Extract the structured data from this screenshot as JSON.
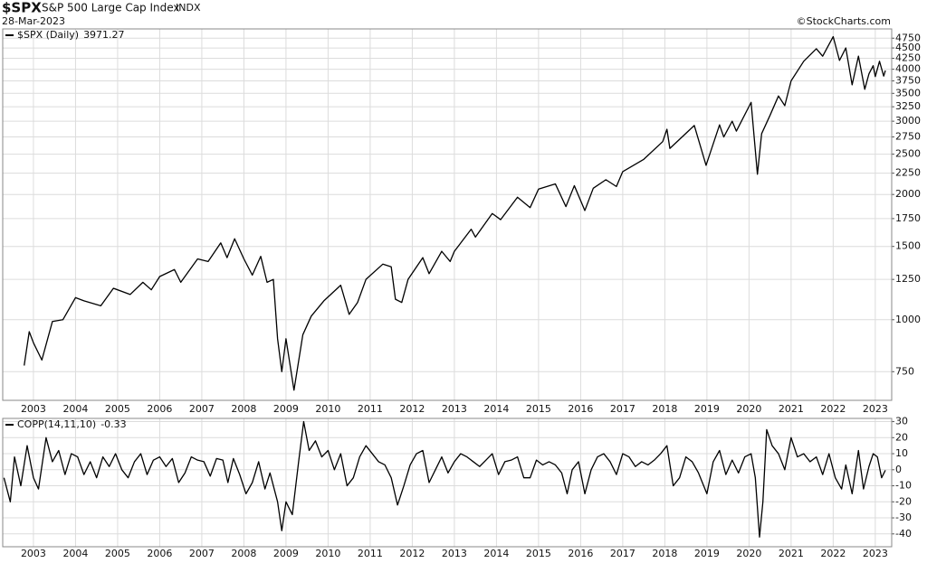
{
  "chart_data": [
    {
      "type": "line",
      "title": "$SPX",
      "subtitle": "S&P 500 Large Cap Index",
      "exchange": "INDX",
      "date": "28-Mar-2023",
      "source": "©StockCharts.com",
      "log_scale": true,
      "grid": true,
      "x": [
        2002.78,
        2002.9,
        2003.0,
        2003.2,
        2003.45,
        2003.7,
        2004.0,
        2004.2,
        2004.6,
        2004.9,
        2005.3,
        2005.6,
        2005.8,
        2006.0,
        2006.35,
        2006.5,
        2006.9,
        2007.15,
        2007.45,
        2007.6,
        2007.78,
        2008.0,
        2008.2,
        2008.4,
        2008.55,
        2008.7,
        2008.8,
        2008.9,
        2009.0,
        2009.19,
        2009.4,
        2009.6,
        2009.9,
        2010.3,
        2010.5,
        2010.7,
        2010.9,
        2011.3,
        2011.5,
        2011.6,
        2011.75,
        2011.9,
        2012.25,
        2012.4,
        2012.7,
        2012.9,
        2013.0,
        2013.4,
        2013.5,
        2013.9,
        2014.1,
        2014.5,
        2014.8,
        2015.0,
        2015.4,
        2015.65,
        2015.85,
        2016.1,
        2016.3,
        2016.6,
        2016.85,
        2017.0,
        2017.5,
        2017.95,
        2018.05,
        2018.12,
        2018.7,
        2018.98,
        2019.3,
        2019.4,
        2019.6,
        2019.7,
        2020.05,
        2020.2,
        2020.3,
        2020.5,
        2020.7,
        2020.85,
        2021.0,
        2021.3,
        2021.6,
        2021.75,
        2022.0,
        2022.15,
        2022.3,
        2022.45,
        2022.6,
        2022.75,
        2022.85,
        2022.95,
        2023.0,
        2023.1,
        2023.2,
        2023.24
      ],
      "series": [
        {
          "name": "$SPX (Daily)",
          "color": "#000000",
          "values": [
            776,
            936,
            880,
            800,
            990,
            1000,
            1130,
            1110,
            1080,
            1190,
            1150,
            1230,
            1180,
            1270,
            1320,
            1230,
            1400,
            1380,
            1530,
            1410,
            1565,
            1400,
            1280,
            1420,
            1230,
            1250,
            900,
            750,
            900,
            677,
            920,
            1020,
            1110,
            1210,
            1030,
            1100,
            1250,
            1360,
            1340,
            1120,
            1100,
            1250,
            1410,
            1290,
            1460,
            1380,
            1460,
            1650,
            1580,
            1800,
            1740,
            1970,
            1860,
            2060,
            2120,
            1870,
            2100,
            1830,
            2070,
            2170,
            2090,
            2270,
            2430,
            2680,
            2870,
            2580,
            2930,
            2350,
            2940,
            2750,
            3000,
            2840,
            3330,
            2237,
            2800,
            3100,
            3450,
            3270,
            3750,
            4180,
            4480,
            4300,
            4790,
            4200,
            4500,
            3670,
            4300,
            3580,
            3900,
            4080,
            3840,
            4180,
            3850,
            3971.27
          ]
        }
      ],
      "xlim": [
        2002.27,
        2023.39
      ],
      "xticks": [
        2003,
        2004,
        2005,
        2006,
        2007,
        2008,
        2009,
        2010,
        2011,
        2012,
        2013,
        2014,
        2015,
        2016,
        2017,
        2018,
        2019,
        2020,
        2021,
        2022,
        2023
      ],
      "ylim": [
        640,
        5000
      ],
      "yticks": [
        750,
        1000,
        1250,
        1500,
        1750,
        2000,
        2250,
        2500,
        2750,
        3000,
        3250,
        3500,
        3750,
        4000,
        4250,
        4500,
        4750
      ]
    },
    {
      "type": "line",
      "grid": true,
      "x": [
        2002.3,
        2002.45,
        2002.55,
        2002.7,
        2002.85,
        2003.0,
        2003.12,
        2003.3,
        2003.45,
        2003.6,
        2003.75,
        2003.9,
        2004.05,
        2004.2,
        2004.35,
        2004.5,
        2004.65,
        2004.8,
        2004.95,
        2005.1,
        2005.25,
        2005.4,
        2005.55,
        2005.7,
        2005.85,
        2006.0,
        2006.15,
        2006.3,
        2006.45,
        2006.6,
        2006.75,
        2006.9,
        2007.05,
        2007.2,
        2007.35,
        2007.5,
        2007.62,
        2007.75,
        2007.9,
        2008.05,
        2008.2,
        2008.35,
        2008.5,
        2008.62,
        2008.8,
        2008.9,
        2009.0,
        2009.15,
        2009.3,
        2009.42,
        2009.55,
        2009.7,
        2009.85,
        2010.0,
        2010.15,
        2010.3,
        2010.45,
        2010.6,
        2010.75,
        2010.9,
        2011.05,
        2011.2,
        2011.35,
        2011.5,
        2011.65,
        2011.8,
        2011.95,
        2012.1,
        2012.25,
        2012.4,
        2012.55,
        2012.7,
        2012.85,
        2013.0,
        2013.15,
        2013.3,
        2013.45,
        2013.6,
        2013.75,
        2013.9,
        2014.05,
        2014.2,
        2014.35,
        2014.5,
        2014.65,
        2014.8,
        2014.95,
        2015.1,
        2015.25,
        2015.4,
        2015.55,
        2015.68,
        2015.8,
        2015.95,
        2016.1,
        2016.25,
        2016.4,
        2016.55,
        2016.7,
        2016.85,
        2017.0,
        2017.15,
        2017.3,
        2017.45,
        2017.6,
        2017.75,
        2017.9,
        2018.05,
        2018.2,
        2018.35,
        2018.5,
        2018.65,
        2018.8,
        2019.0,
        2019.15,
        2019.3,
        2019.45,
        2019.6,
        2019.75,
        2019.9,
        2020.05,
        2020.15,
        2020.25,
        2020.33,
        2020.42,
        2020.55,
        2020.7,
        2020.85,
        2021.0,
        2021.15,
        2021.3,
        2021.45,
        2021.6,
        2021.75,
        2021.9,
        2022.05,
        2022.2,
        2022.3,
        2022.45,
        2022.6,
        2022.72,
        2022.85,
        2022.95,
        2023.05,
        2023.15,
        2023.24
      ],
      "series": [
        {
          "name": "COPP(14,11,10)",
          "color": "#000000",
          "values": [
            -5,
            -20,
            8,
            -10,
            15,
            -5,
            -12,
            20,
            5,
            12,
            -3,
            10,
            8,
            -3,
            5,
            -5,
            8,
            2,
            10,
            0,
            -5,
            5,
            10,
            -3,
            6,
            8,
            2,
            7,
            -8,
            -2,
            8,
            6,
            5,
            -4,
            7,
            6,
            -8,
            7,
            -3,
            -15,
            -8,
            5,
            -12,
            -2,
            -20,
            -38,
            -20,
            -28,
            5,
            30,
            12,
            18,
            8,
            12,
            0,
            10,
            -10,
            -5,
            8,
            15,
            10,
            5,
            3,
            -5,
            -22,
            -10,
            3,
            10,
            12,
            -8,
            0,
            8,
            -2,
            5,
            10,
            8,
            5,
            2,
            6,
            10,
            -3,
            5,
            6,
            8,
            -5,
            -5,
            6,
            3,
            5,
            3,
            -2,
            -15,
            0,
            5,
            -15,
            0,
            8,
            10,
            5,
            -3,
            10,
            8,
            2,
            5,
            3,
            6,
            10,
            15,
            -10,
            -5,
            8,
            5,
            -2,
            -15,
            5,
            12,
            -3,
            6,
            -2,
            8,
            10,
            -5,
            -42,
            -20,
            25,
            15,
            10,
            0,
            20,
            8,
            10,
            5,
            8,
            -3,
            10,
            -5,
            -12,
            3,
            -15,
            12,
            -12,
            2,
            10,
            8,
            -5,
            -0.33
          ]
        }
      ],
      "xlim": [
        2002.27,
        2023.39
      ],
      "xticks": [
        2003,
        2004,
        2005,
        2006,
        2007,
        2008,
        2009,
        2010,
        2011,
        2012,
        2013,
        2014,
        2015,
        2016,
        2017,
        2018,
        2019,
        2020,
        2021,
        2022,
        2023
      ],
      "ylim": [
        -48,
        32
      ],
      "yticks": [
        30,
        20,
        10,
        0,
        -10,
        -20,
        -30,
        -40
      ]
    }
  ]
}
